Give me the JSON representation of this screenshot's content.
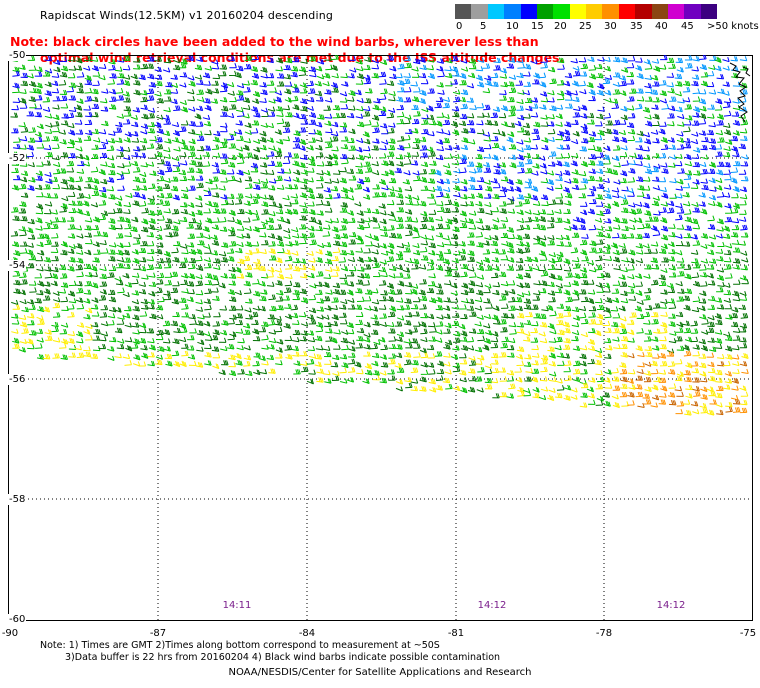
{
  "title": "Rapidscat Winds(12.5KM) v1 20160204 descending",
  "note_line1": "Note: black circles have been added to the wind barbs, wherever less than",
  "note_line2": "optimal wind retrieval conditions are met due to the ISS altitude changes.",
  "legend": {
    "colors": [
      "#555555",
      "#9e9e9e",
      "#00c8ff",
      "#0080ff",
      "#0000ff",
      "#00a000",
      "#00e000",
      "#ffff00",
      "#ffcc00",
      "#ff9000",
      "#ff0000",
      "#b40000",
      "#8b4513",
      "#d000d0",
      "#7000c0",
      "#3c0080"
    ],
    "labels": [
      "0",
      "5",
      "10",
      "15",
      "20",
      "25",
      "30",
      "35",
      "40",
      "45",
      ">50 knots"
    ]
  },
  "axes": {
    "lon_labels": [
      "-90",
      "-87",
      "-84",
      "-81",
      "-78",
      "-75"
    ],
    "lat_labels": [
      "-50",
      "-52",
      "-54",
      "-56",
      "-58",
      "-60"
    ]
  },
  "times": [
    "14:11",
    "14:12",
    "14:12"
  ],
  "bottom_note_line1": "Note: 1) Times are GMT 2)Times along bottom correspond to measurement at ~50S",
  "bottom_note_line2": "3)Data buffer is 22 hrs from 20160204 4) Black wind barbs indicate possible contamination",
  "credit": "NOAA/NESDIS/Center for Satellite Applications and Research"
}
